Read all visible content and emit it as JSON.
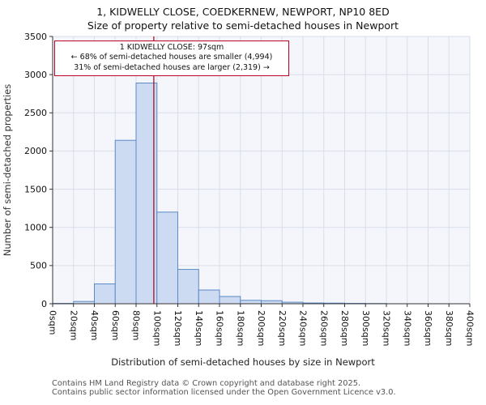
{
  "title": "1, KIDWELLY CLOSE, COEDKERNEW, NEWPORT, NP10 8ED",
  "subtitle": "Size of property relative to semi-detached houses in Newport",
  "annotation": {
    "line1": "1 KIDWELLY CLOSE: 97sqm",
    "line2": "← 68% of semi-detached houses are smaller (4,994)",
    "line3": "31% of semi-detached houses are larger (2,319) →"
  },
  "footer": {
    "line1": "Contains HM Land Registry data © Crown copyright and database right 2025.",
    "line2": "Contains public sector information licensed under the Open Government Licence v3.0."
  },
  "chart_data": {
    "type": "bar",
    "title": "1, KIDWELLY CLOSE, COEDKERNEW, NEWPORT, NP10 8ED — Size of property relative to semi-detached houses in Newport",
    "xlabel": "Distribution of semi-detached houses by size in Newport",
    "ylabel": "Number of semi-detached properties",
    "xlim": [
      0,
      400
    ],
    "ylim": [
      0,
      3500
    ],
    "bin_width": 20,
    "bin_starts": [
      0,
      20,
      40,
      60,
      80,
      100,
      120,
      140,
      160,
      180,
      200,
      220,
      240,
      260,
      280,
      300,
      320,
      340,
      360,
      380
    ],
    "values": [
      5,
      30,
      260,
      2140,
      2890,
      1200,
      450,
      180,
      95,
      45,
      40,
      20,
      10,
      8,
      5,
      3,
      0,
      0,
      0,
      0
    ],
    "x_tick_labels": [
      "0sqm",
      "20sqm",
      "40sqm",
      "60sqm",
      "80sqm",
      "100sqm",
      "120sqm",
      "140sqm",
      "160sqm",
      "180sqm",
      "200sqm",
      "220sqm",
      "240sqm",
      "260sqm",
      "280sqm",
      "300sqm",
      "320sqm",
      "340sqm",
      "360sqm",
      "380sqm",
      "400sqm"
    ],
    "y_ticks": [
      0,
      500,
      1000,
      1500,
      2000,
      2500,
      3000,
      3500
    ],
    "marker": {
      "label": "1 KIDWELLY CLOSE",
      "value_sqm": 97,
      "color": "#aa1126"
    },
    "grid": true,
    "legend": "none",
    "colors": {
      "bar_fill": "#ccdbf1",
      "bar_border": "#5b8ac5",
      "grid": "#d9dde9",
      "plot_bg": "#f4f6fc",
      "spine": "#333333",
      "tick_text": "#111111",
      "axis_label": "#333333"
    }
  }
}
